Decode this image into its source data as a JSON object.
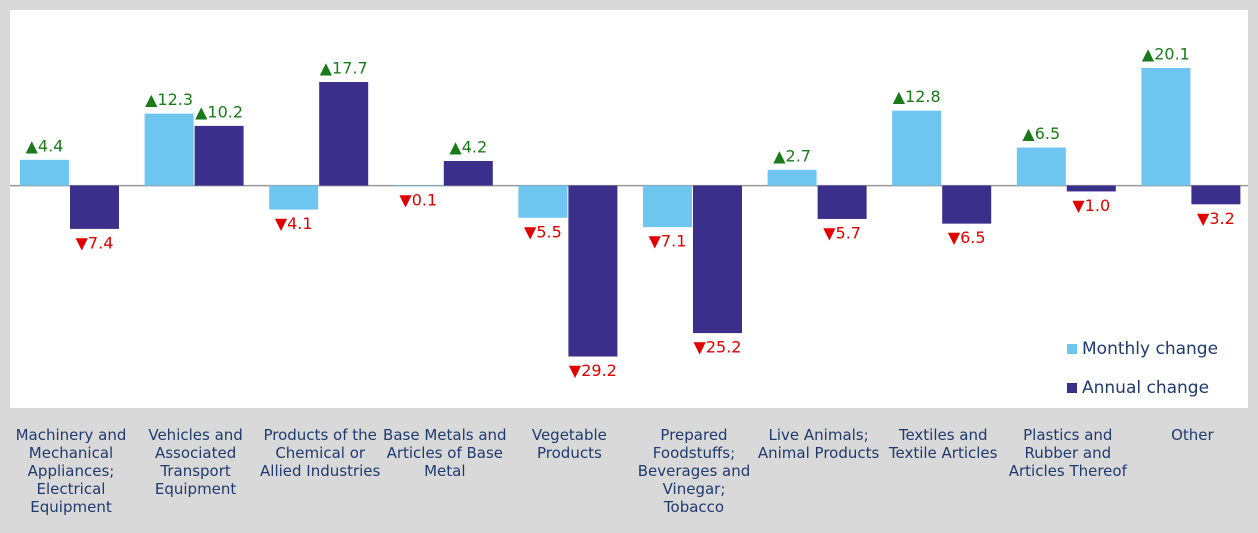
{
  "chart_data": {
    "type": "bar",
    "categories": [
      "Machinery and Mechanical Appliances; Electrical Equipment",
      "Vehicles and Associated Transport Equipment",
      "Products of the Chemical or Allied Industries",
      "Base Metals and Articles of Base Metal",
      "Vegetable Products",
      "Prepared Foodstuffs; Beverages and Vinegar; Tobacco",
      "Live Animals; Animal Products",
      "Textiles and Textile Articles",
      "Plastics and Rubber and Articles Thereof",
      "Other"
    ],
    "series": [
      {
        "name": "Monthly change",
        "color": "#6ec6f0",
        "values": [
          4.4,
          12.3,
          -4.1,
          -0.1,
          -5.5,
          -7.1,
          2.7,
          12.8,
          6.5,
          20.1
        ],
        "value_labels": [
          "▲4.4",
          "▲12.3",
          "▼4.1",
          "▼0.1",
          "▼5.5",
          "▼7.1",
          "▲2.7",
          "▲12.8",
          "▲6.5",
          "▲20.1"
        ]
      },
      {
        "name": "Annual change",
        "color": "#3b2f8c",
        "values": [
          -7.4,
          10.2,
          17.7,
          4.2,
          -29.2,
          -25.2,
          -5.7,
          -6.5,
          -1.0,
          -3.2
        ],
        "value_labels": [
          "▼7.4",
          "▲10.2",
          "▲17.7",
          "▲4.2",
          "▼29.2",
          "▼25.2",
          "▼5.7",
          "▼6.5",
          "▼1.0",
          "▼3.2"
        ]
      }
    ],
    "up_color": "#1a7a1a",
    "down_color": "#e00000",
    "ylim": [
      -38,
      30
    ],
    "legend": "lower right"
  }
}
